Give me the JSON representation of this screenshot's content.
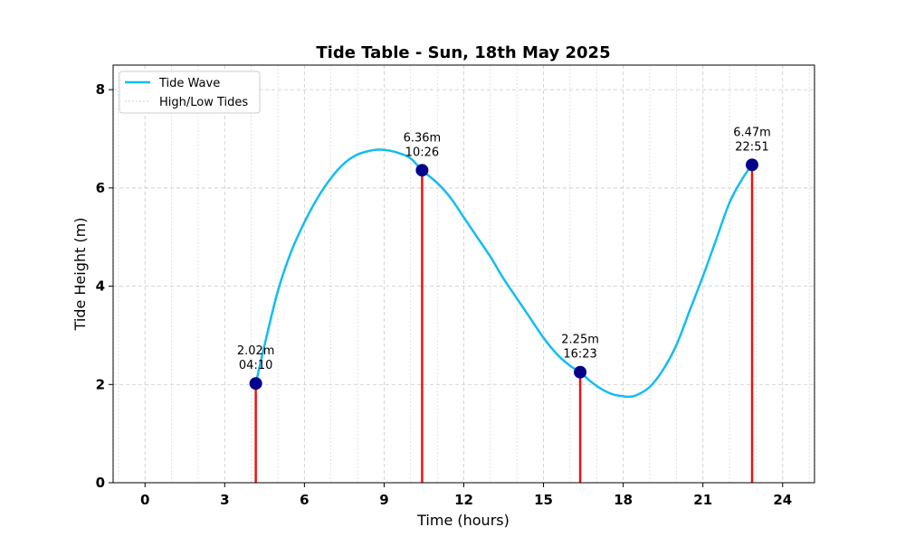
{
  "chart_data": {
    "type": "line",
    "title": "Tide Table - Sun, 18th May 2025",
    "xlabel": "Time (hours)",
    "ylabel": "Tide Height (m)",
    "xlim": [
      -1.2,
      25.2
    ],
    "ylim": [
      0,
      8.5
    ],
    "xticks": [
      0,
      3,
      6,
      9,
      12,
      15,
      18,
      21,
      24
    ],
    "yticks": [
      0,
      2,
      4,
      6,
      8
    ],
    "x_minor_step": 1,
    "grid": true,
    "legend_placement": "top-left",
    "legend": [
      "Tide Wave",
      "High/Low Tides"
    ],
    "colors": {
      "wave": "#13bdf0",
      "stem": "#ee1111",
      "marker": "#00008b",
      "grid": "#d0d0d0"
    },
    "series": [
      {
        "name": "Tide Wave",
        "x": [
          4.17,
          4.5,
          5.0,
          5.5,
          6.0,
          6.5,
          7.0,
          7.5,
          8.0,
          8.5,
          8.8,
          9.2,
          9.6,
          10.0,
          10.43,
          11.0,
          11.5,
          12.0,
          12.5,
          13.0,
          13.5,
          14.0,
          14.5,
          15.0,
          15.5,
          16.0,
          16.38,
          16.8,
          17.2,
          17.6,
          18.0,
          18.2,
          18.5,
          19.0,
          19.5,
          20.0,
          20.5,
          21.0,
          21.5,
          22.0,
          22.5,
          22.85
        ],
        "y": [
          2.02,
          2.8,
          3.9,
          4.7,
          5.3,
          5.8,
          6.2,
          6.5,
          6.68,
          6.76,
          6.78,
          6.76,
          6.7,
          6.6,
          6.36,
          6.1,
          5.8,
          5.4,
          5.0,
          4.6,
          4.15,
          3.75,
          3.35,
          2.95,
          2.62,
          2.38,
          2.25,
          2.05,
          1.9,
          1.8,
          1.76,
          1.75,
          1.78,
          1.95,
          2.3,
          2.8,
          3.5,
          4.2,
          4.95,
          5.7,
          6.2,
          6.47
        ]
      }
    ],
    "tides": [
      {
        "time": "04:10",
        "x": 4.17,
        "height": 2.02,
        "label": "2.02m"
      },
      {
        "time": "10:26",
        "x": 10.43,
        "height": 6.36,
        "label": "6.36m"
      },
      {
        "time": "16:23",
        "x": 16.38,
        "height": 2.25,
        "label": "2.25m"
      },
      {
        "time": "22:51",
        "x": 22.85,
        "height": 6.47,
        "label": "6.47m"
      }
    ]
  }
}
